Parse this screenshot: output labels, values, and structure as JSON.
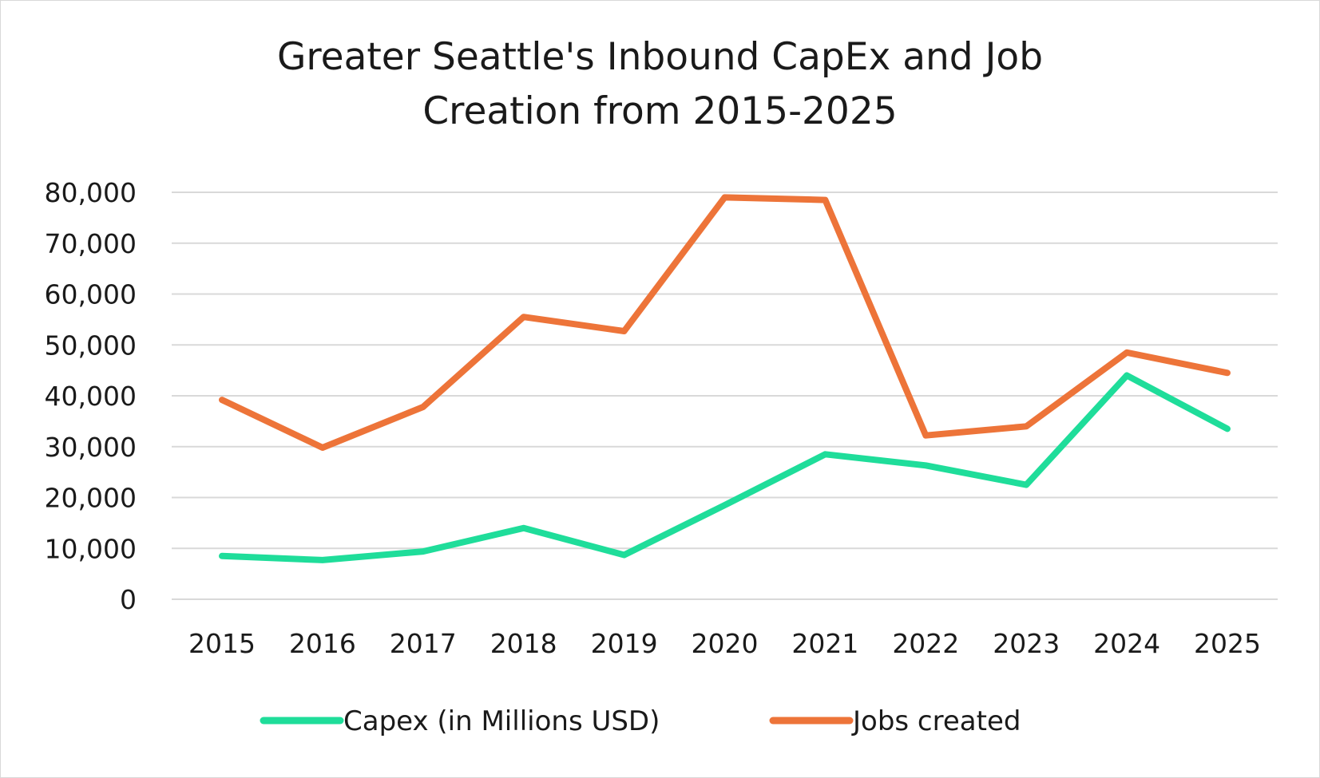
{
  "chart_data": {
    "type": "line",
    "title_lines": [
      "Greater Seattle's Inbound CapEx and Job",
      "Creation from 2015-2025"
    ],
    "categories": [
      "2015",
      "2016",
      "2017",
      "2018",
      "2019",
      "2020",
      "2021",
      "2022",
      "2023",
      "2024",
      "2025"
    ],
    "series": [
      {
        "name": "Capex (in Millions USD)",
        "color": "#1fdd9a",
        "values": [
          8500,
          7700,
          9400,
          14000,
          8700,
          18500,
          28500,
          26300,
          22500,
          44000,
          33500
        ]
      },
      {
        "name": "Jobs created",
        "color": "#ed7439",
        "values": [
          39200,
          29800,
          37800,
          55500,
          52700,
          79000,
          78500,
          32200,
          34000,
          48500,
          44500
        ]
      }
    ],
    "y_ticks": [
      "0",
      "10,000",
      "20,000",
      "30,000",
      "40,000",
      "50,000",
      "60,000",
      "70,000",
      "80,000"
    ],
    "ylim": [
      0,
      80000
    ],
    "xlabel": "",
    "ylabel": "",
    "grid": true,
    "legend_position": "bottom"
  }
}
